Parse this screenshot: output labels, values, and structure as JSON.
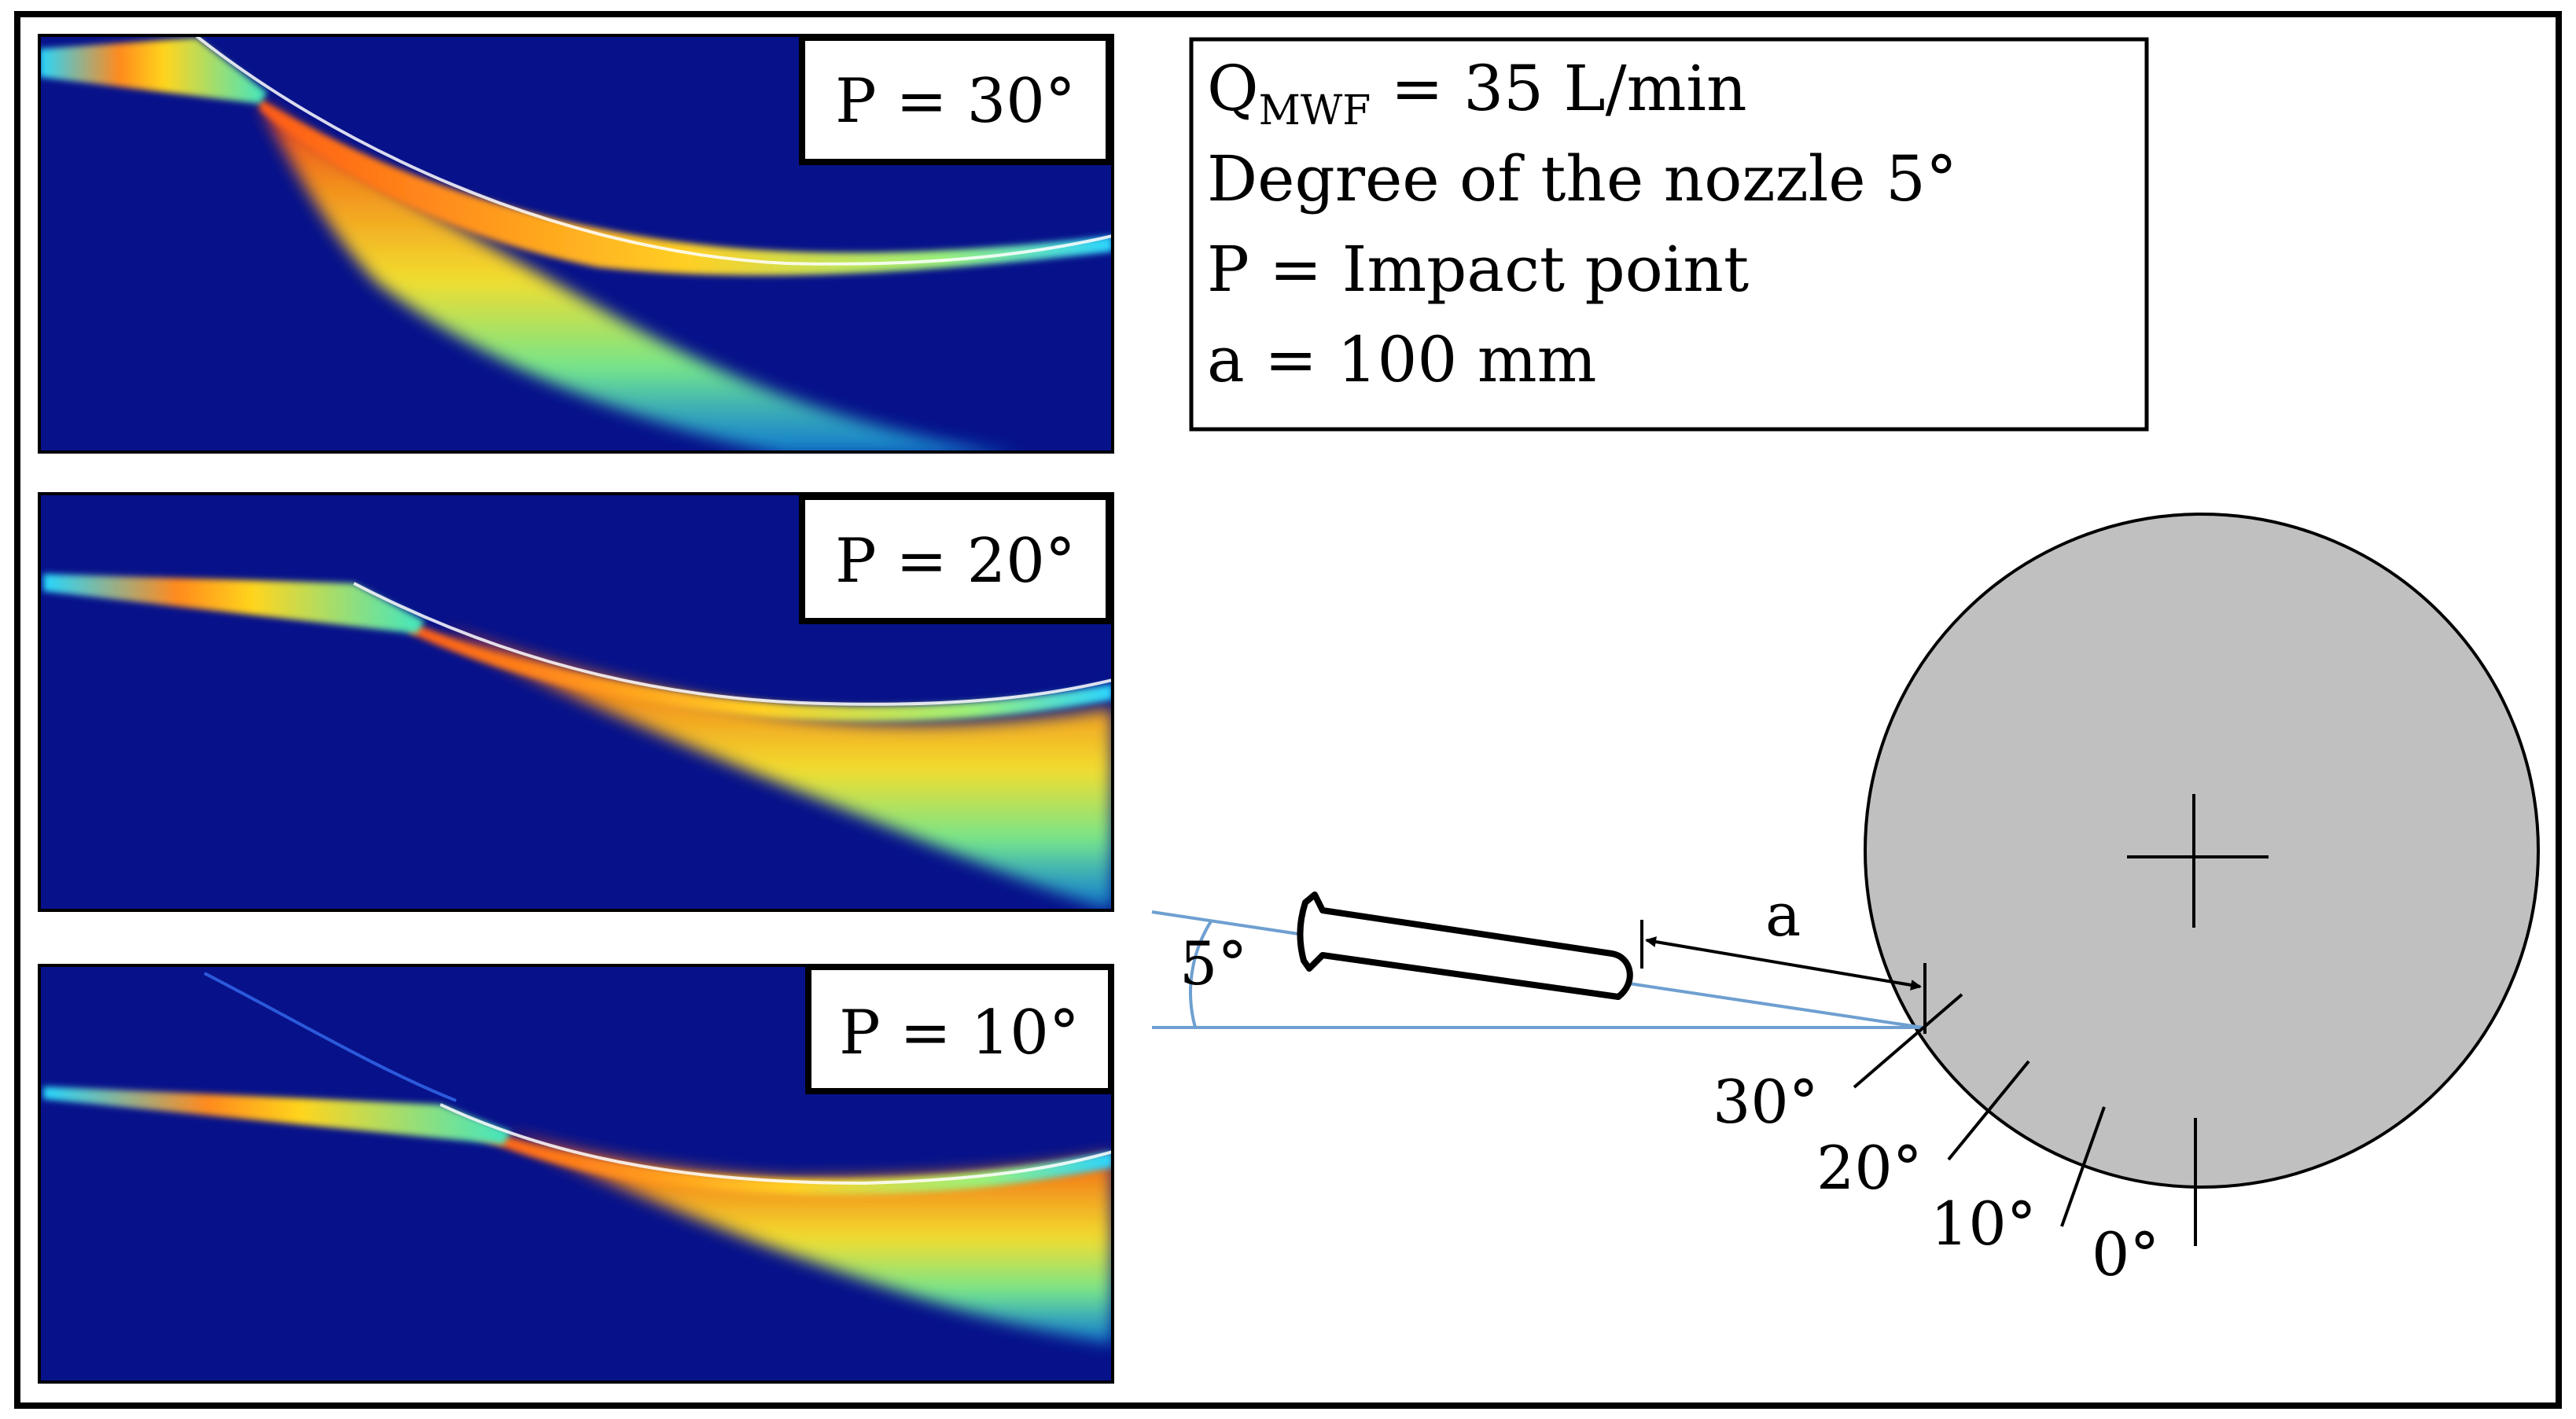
{
  "panels": [
    {
      "label": "P = 30°"
    },
    {
      "label": "P = 20°"
    },
    {
      "label": "P = 10°"
    }
  ],
  "legend": {
    "flow_q": "Q",
    "flow_sub": "MWF",
    "flow_value": " = 35 L/min",
    "nozzle_degree": "Degree of the nozzle 5°",
    "impact_point": "P = Impact point",
    "distance": "a = 100 mm"
  },
  "diagram": {
    "nozzle_angle_label": "5°",
    "distance_label": "a",
    "impact_angles": [
      "30°",
      "20°",
      "10°",
      "0°"
    ]
  },
  "colors": {
    "background_blue": "#07128a",
    "wheel_fill": "#c0c0c0",
    "angle_line": "#6e9fd0",
    "frame": "#000000"
  }
}
